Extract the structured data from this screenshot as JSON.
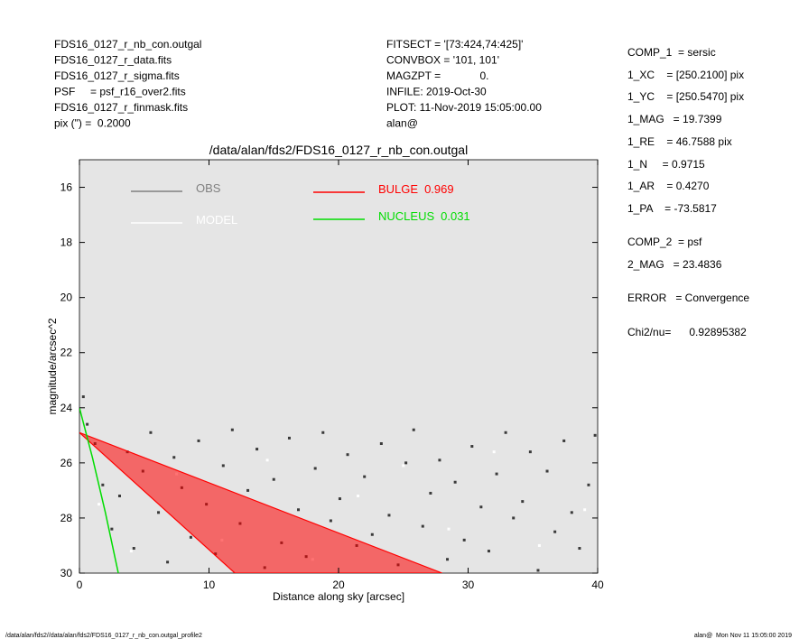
{
  "header": {
    "left": [
      "FDS16_0127_r_nb_con.outgal",
      "FDS16_0127_r_data.fits",
      "FDS16_0127_r_sigma.fits",
      "PSF     = psf_r16_over2.fits",
      "FDS16_0127_r_finmask.fits",
      "pix (\") =  0.2000"
    ],
    "middle": [
      "FITSECT = '[73:424,74:425]'",
      "CONVBOX = '101, 101'",
      "MAGZPT =             0.",
      "INFILE: 2019-Oct-30",
      "PLOT: 11-Nov-2019 15:05:00.00",
      "alan@"
    ],
    "right": [
      "COMP_1  = sersic",
      "1_XC    = [250.2100] pix",
      "1_YC    = [250.5470] pix",
      "1_MAG   = 19.7399",
      "1_RE    = 46.7588 pix",
      "1_N     = 0.9715",
      "1_AR    = 0.4270",
      "1_PA    = -73.5817",
      "COMP_2  = psf",
      "2_MAG   = 23.4836",
      "ERROR   = Convergence",
      "Chi2/nu=      0.92895382"
    ]
  },
  "footer": {
    "left": "/data/alan/fds2//data/alan/fds2/FDS16_0127_r_nb_con.outgal_profile2",
    "right": "alan@  Mon Nov 11 15:05:00 2019"
  },
  "chart_data": {
    "type": "scatter",
    "title": "/data/alan/fds2/FDS16_0127_r_nb_con.outgal",
    "xlabel": "Distance along sky [arcsec]",
    "ylabel": "magnitude/arcsec^2",
    "xlim": [
      0,
      40
    ],
    "xticks": [
      0,
      10,
      20,
      30,
      40
    ],
    "ylim": [
      30,
      15
    ],
    "yticks": [
      16,
      18,
      20,
      22,
      24,
      26,
      28,
      30
    ],
    "background": "#e5e5e5",
    "series": [
      {
        "name": "OBS",
        "color": "#808080",
        "point_color": "#3a3a3a",
        "kind": "points",
        "x": [
          0.3,
          0.6,
          1.2,
          1.8,
          2.5,
          3.1,
          3.7,
          4.2,
          4.9,
          5.5,
          6.1,
          6.8,
          7.3,
          7.9,
          8.6,
          9.2,
          9.8,
          10.5,
          11.1,
          11.8,
          12.4,
          13.0,
          13.7,
          14.3,
          15.0,
          15.6,
          16.2,
          16.9,
          17.5,
          18.2,
          18.8,
          19.4,
          20.1,
          20.7,
          21.4,
          22.0,
          22.6,
          23.3,
          23.9,
          24.6,
          25.2,
          25.8,
          26.5,
          27.1,
          27.8,
          28.4,
          29.0,
          29.7,
          30.3,
          31.0,
          31.6,
          32.2,
          32.9,
          33.5,
          34.2,
          34.8,
          35.4,
          36.1,
          36.7,
          37.4,
          38.0,
          38.6,
          39.3,
          39.8
        ],
        "values": [
          23.6,
          24.6,
          25.3,
          26.8,
          28.4,
          27.2,
          25.6,
          29.1,
          26.3,
          24.9,
          27.8,
          29.6,
          25.8,
          26.9,
          28.7,
          25.2,
          27.5,
          29.3,
          26.1,
          24.8,
          28.2,
          27.0,
          25.5,
          29.8,
          26.6,
          28.9,
          25.1,
          27.7,
          29.4,
          26.2,
          24.9,
          28.1,
          27.3,
          25.7,
          29.0,
          26.5,
          28.6,
          25.3,
          27.9,
          29.7,
          26.0,
          24.8,
          28.3,
          27.1,
          25.9,
          29.5,
          26.7,
          28.8,
          25.4,
          27.6,
          29.2,
          26.4,
          24.9,
          28.0,
          27.4,
          25.6,
          29.9,
          26.3,
          28.5,
          25.2,
          27.8,
          29.1,
          26.8,
          25.0
        ]
      },
      {
        "name": "MODEL",
        "color": "#ffffff",
        "point_color": "#ffffff",
        "kind": "points",
        "x": [
          1.5,
          4.0,
          7.5,
          11.0,
          14.5,
          18.0,
          21.5,
          25.0,
          28.5,
          32.0,
          35.5,
          39.0
        ],
        "values": [
          27.5,
          29.2,
          26.4,
          28.8,
          25.9,
          29.5,
          27.2,
          26.1,
          28.4,
          25.6,
          29.0,
          27.7
        ]
      },
      {
        "name": "BULGE",
        "fraction": 0.969,
        "color": "#ff0000",
        "kind": "fan",
        "x": [
          0,
          12,
          28
        ],
        "values": [
          24.9,
          30,
          30
        ]
      },
      {
        "name": "NUCLEUS",
        "fraction": 0.031,
        "color": "#00dd00",
        "kind": "line",
        "x": [
          0,
          0.5,
          1,
          1.5,
          2,
          2.5,
          3
        ],
        "values": [
          24.0,
          24.9,
          25.8,
          26.8,
          27.8,
          28.9,
          30.0
        ]
      }
    ]
  }
}
